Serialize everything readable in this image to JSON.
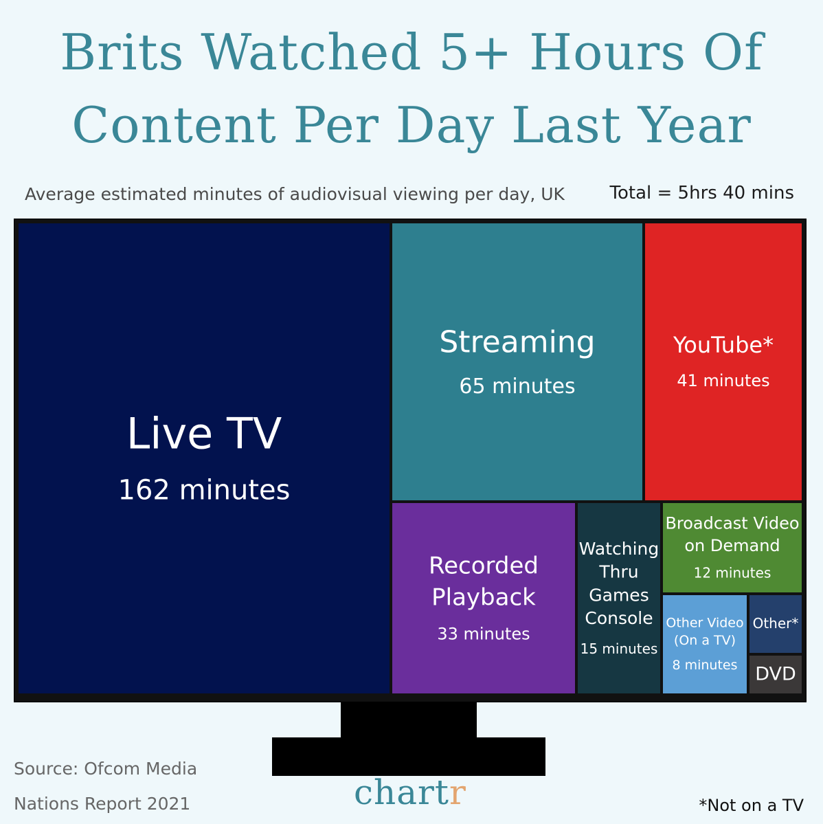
{
  "header": {
    "title_line1": "Brits Watched 5+ Hours Of",
    "title_line2": "Content Per Day Last Year",
    "subtitle": "Average estimated minutes of audiovisual viewing per day, UK",
    "total": "Total = 5hrs 40 mins"
  },
  "footer": {
    "source_line1": "Source: Ofcom Media",
    "source_line2": "Nations Report 2021",
    "logo_main": "chartr",
    "footnote": "*Not on a TV"
  },
  "chart_data": {
    "type": "treemap",
    "unit": "minutes",
    "items": [
      {
        "key": "live_tv",
        "label_lines": [
          "Live TV"
        ],
        "value": 162,
        "value_label": "162 minutes",
        "color": "#02124e"
      },
      {
        "key": "streaming",
        "label_lines": [
          "Streaming"
        ],
        "value": 65,
        "value_label": "65 minutes",
        "color": "#2e7f8f"
      },
      {
        "key": "youtube",
        "label_lines": [
          "YouTube*"
        ],
        "value": 41,
        "value_label": "41 minutes",
        "color": "#df2424"
      },
      {
        "key": "recorded_playback",
        "label_lines": [
          "Recorded",
          "Playback"
        ],
        "value": 33,
        "value_label": "33 minutes",
        "color": "#6a2e9c"
      },
      {
        "key": "games_console",
        "label_lines": [
          "Watching",
          "Thru",
          "Games",
          "Console"
        ],
        "value": 15,
        "value_label": "15 minutes",
        "color": "#163742"
      },
      {
        "key": "bvod",
        "label_lines": [
          "Broadcast Video",
          "on Demand"
        ],
        "value": 12,
        "value_label": "12 minutes",
        "color": "#4f8a33"
      },
      {
        "key": "other_video_tv",
        "label_lines": [
          "Other Video",
          "(On a TV)"
        ],
        "value": 8,
        "value_label": "8 minutes",
        "color": "#5c9fd6"
      },
      {
        "key": "other",
        "label_lines": [
          "Other*"
        ],
        "value": null,
        "value_label": "",
        "color": "#24406c"
      },
      {
        "key": "dvd",
        "label_lines": [
          "DVD"
        ],
        "value": null,
        "value_label": "",
        "color": "#3b3838"
      }
    ]
  }
}
